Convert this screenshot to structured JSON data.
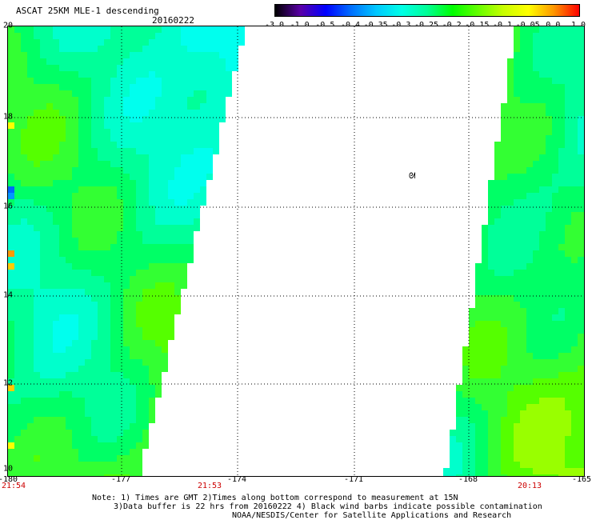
{
  "header": {
    "title": "ASCAT 25KM MLE-1 descending",
    "date": "20160222"
  },
  "colorbar": {
    "labels": [
      "-3.0",
      "-1.0",
      "-0.5",
      "-0.4",
      "-0.35",
      "-0.3",
      "-0.25",
      "-0.2",
      "-0.15",
      "-0.1",
      "-0.05",
      "0.0",
      "1.0"
    ],
    "colors": [
      "#000000",
      "#5a00a8",
      "#0000ff",
      "#0070ff",
      "#00c8ff",
      "#00ffe6",
      "#00ff96",
      "#00ff00",
      "#64ff00",
      "#c8ff00",
      "#ffff00",
      "#ff9600",
      "#ff0000"
    ]
  },
  "axes": {
    "lat_labels": [
      "20",
      "18",
      "16",
      "14",
      "12",
      "10"
    ],
    "lon_labels": [
      "-180",
      "-177",
      "-174",
      "-171",
      "-168",
      "-165"
    ],
    "time_labels": [
      "21:54",
      "21:53",
      "20:13"
    ],
    "lat_range": [
      10,
      20
    ],
    "lon_range": [
      -180,
      -166
    ],
    "grid": true
  },
  "symbol": {
    "char": "ᘛ"
  },
  "notes": {
    "line1": "Note: 1) Times are GMT 2)Times along bottom correspond to measurement at 15N",
    "line2": "3)Data buffer is 22 hrs from 20160222 4) Black wind barbs indicate possible contamination",
    "line3": "NOAA/NESDIS/Center for Satellite Applications and Research"
  }
}
